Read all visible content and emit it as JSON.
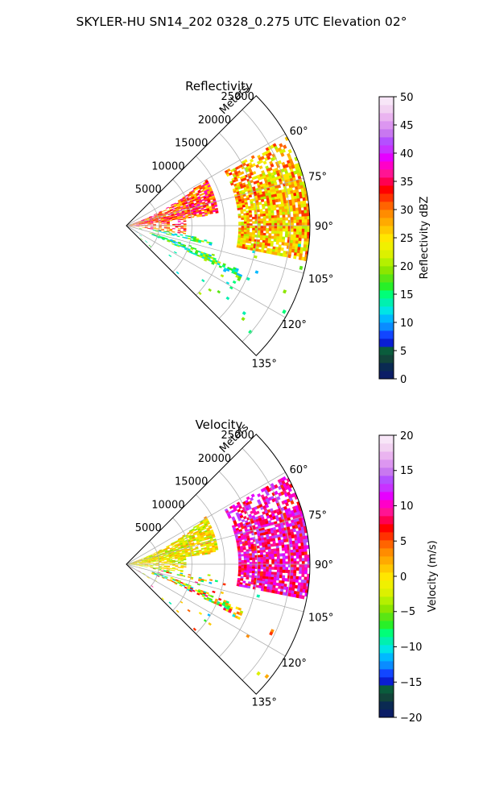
{
  "figure": {
    "suptitle": "SKYLER-HU  SN14_202  0328_0.275 UTC Elevation 02°"
  },
  "panels": [
    {
      "title": "Reflectivity",
      "range_axis_label": "Meters",
      "range_ticks": [
        "5000",
        "10000",
        "15000",
        "20000",
        "25000"
      ],
      "angle_ticks": [
        "60°",
        "75°",
        "90°",
        "105°",
        "120°",
        "135°"
      ],
      "colorbar": {
        "label": "Reflectivity dBZ",
        "ticks": [
          "0",
          "5",
          "10",
          "15",
          "20",
          "25",
          "30",
          "35",
          "40",
          "45",
          "50"
        ]
      }
    },
    {
      "title": "Velocity",
      "range_axis_label": "Meters",
      "range_ticks": [
        "5000",
        "10000",
        "15000",
        "20000",
        "25000"
      ],
      "angle_ticks": [
        "60°",
        "75°",
        "90°",
        "105°",
        "120°",
        "135°"
      ],
      "colorbar": {
        "label": "Velocity (m/s)",
        "ticks": [
          "−20",
          "−15",
          "−10",
          "−5",
          "0",
          "5",
          "10",
          "15",
          "20"
        ]
      }
    }
  ],
  "chart_data": [
    {
      "type": "heatmap",
      "projection": "polar",
      "title": "Reflectivity",
      "theta_range_deg": [
        45,
        135
      ],
      "theta_ticks_deg": [
        60,
        75,
        90,
        105,
        120,
        135
      ],
      "r_range": [
        0,
        28000
      ],
      "r_ticks": [
        5000,
        10000,
        15000,
        20000,
        25000
      ],
      "r_label": "Meters",
      "colorbar": {
        "label": "Reflectivity dBZ",
        "range": [
          0,
          50
        ],
        "ticks": [
          0,
          5,
          10,
          15,
          20,
          25,
          30,
          35,
          40,
          45,
          50
        ]
      },
      "features": [
        {
          "region": "near-radar band along 70–80°",
          "value_range": [
            25,
            38
          ]
        },
        {
          "region": "far arc 60–100° at 17000–28000 m",
          "value_range": [
            20,
            33
          ]
        },
        {
          "region": "scattered echoes 95–135°",
          "value_range": [
            10,
            22
          ]
        }
      ],
      "grid": true
    },
    {
      "type": "heatmap",
      "projection": "polar",
      "title": "Velocity",
      "theta_range_deg": [
        45,
        135
      ],
      "theta_ticks_deg": [
        60,
        75,
        90,
        105,
        120,
        135
      ],
      "r_range": [
        0,
        28000
      ],
      "r_ticks": [
        5000,
        10000,
        15000,
        20000,
        25000
      ],
      "r_label": "Meters",
      "colorbar": {
        "label": "Velocity (m/s)",
        "range": [
          -20,
          20
        ],
        "ticks": [
          -20,
          -15,
          -10,
          -5,
          0,
          5,
          10,
          15,
          20
        ]
      },
      "features": [
        {
          "region": "near-radar band along 70–95°",
          "value_range": [
            -5,
            3
          ]
        },
        {
          "region": "far arc 60–100° at 17000–28000 m",
          "value_range": [
            6,
            14
          ]
        },
        {
          "region": "scattered echoes 95–135°",
          "value_range": [
            -12,
            10
          ]
        }
      ],
      "grid": true
    }
  ],
  "colors": {
    "reflectivity_scale": [
      "#0b1d66",
      "#0a2a52",
      "#12443a",
      "#0a5c3c",
      "#0a1ed2",
      "#1246ff",
      "#0a8cff",
      "#00b9ff",
      "#00e5e6",
      "#00f0b0",
      "#00ff78",
      "#28f028",
      "#5ae614",
      "#8ce600",
      "#b4f000",
      "#dcf000",
      "#f0f000",
      "#ffe600",
      "#ffc800",
      "#ffaa00",
      "#ff8c00",
      "#ff6400",
      "#ff3200",
      "#ff0000",
      "#ff0050",
      "#ff1493",
      "#ff00c8",
      "#e600ff",
      "#c832ff",
      "#b450ff",
      "#c878f0",
      "#dc96f0",
      "#eab4f0",
      "#f2d2f2",
      "#f8e6f8"
    ],
    "velocity_scale": [
      "#0b1d66",
      "#0a2a52",
      "#12443a",
      "#0a5c3c",
      "#0a1ed2",
      "#1246ff",
      "#0a8cff",
      "#00b9ff",
      "#00e5e6",
      "#00f0b0",
      "#00ff78",
      "#28f028",
      "#5ae614",
      "#8ce600",
      "#b4f000",
      "#dcf000",
      "#f0f000",
      "#ffe600",
      "#ffc800",
      "#ffaa00",
      "#ff8c00",
      "#ff6400",
      "#ff3200",
      "#ff0000",
      "#ff0050",
      "#ff1493",
      "#ff00c8",
      "#e600ff",
      "#c832ff",
      "#b450ff",
      "#c878f0",
      "#dc96f0",
      "#eab4f0",
      "#f2d2f2",
      "#f8e6f8"
    ]
  }
}
